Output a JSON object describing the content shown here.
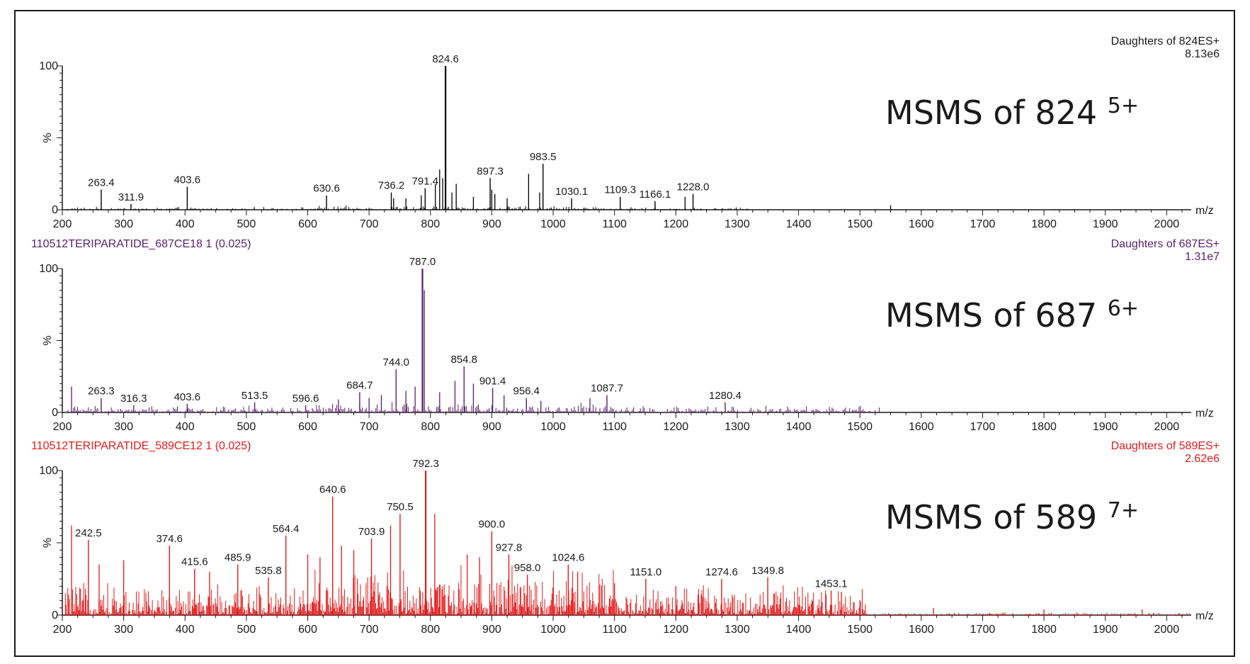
{
  "chart_data": [
    {
      "type": "bar",
      "title": "MSMS of 824",
      "title_superscript": "5+",
      "header_left": "",
      "header_right": "Daughters of 824ES+",
      "intensity": "8.13e6",
      "xlabel": "m/z",
      "ylabel": "%",
      "xlim": [
        200,
        2040
      ],
      "ylim": [
        0,
        100
      ],
      "y_ticks": [
        0,
        100
      ],
      "x_ticks": [
        200,
        300,
        400,
        500,
        600,
        700,
        800,
        900,
        1000,
        1100,
        1200,
        1300,
        1400,
        1500,
        1600,
        1700,
        1800,
        1900,
        2000
      ],
      "color": "#000000",
      "noise_level": 2,
      "noise_max_mz": 1320,
      "labeled_peaks": [
        {
          "mz": 263.4,
          "value": 14,
          "label": "263.4"
        },
        {
          "mz": 311.9,
          "value": 4,
          "label": "311.9"
        },
        {
          "mz": 403.6,
          "value": 16,
          "label": "403.6"
        },
        {
          "mz": 630.6,
          "value": 10,
          "label": "630.6"
        },
        {
          "mz": 736.2,
          "value": 12,
          "label": "736.2"
        },
        {
          "mz": 791.4,
          "value": 15,
          "label": "791.4"
        },
        {
          "mz": 824.6,
          "value": 100,
          "label": "824.6"
        },
        {
          "mz": 897.3,
          "value": 22,
          "label": "897.3"
        },
        {
          "mz": 983.5,
          "value": 32,
          "label": "983.5"
        },
        {
          "mz": 1030.1,
          "value": 8,
          "label": "1030.1"
        },
        {
          "mz": 1109.3,
          "value": 9,
          "label": "1109.3"
        },
        {
          "mz": 1166.1,
          "value": 6,
          "label": "1166.1"
        },
        {
          "mz": 1228.0,
          "value": 11,
          "label": "1228.0"
        }
      ],
      "other_peaks": [
        {
          "mz": 815,
          "value": 28
        },
        {
          "mz": 820,
          "value": 22
        },
        {
          "mz": 808,
          "value": 18
        },
        {
          "mz": 842,
          "value": 18
        },
        {
          "mz": 835,
          "value": 12
        },
        {
          "mz": 960,
          "value": 25
        },
        {
          "mz": 900,
          "value": 14
        },
        {
          "mz": 905,
          "value": 11
        },
        {
          "mz": 978,
          "value": 12
        },
        {
          "mz": 785,
          "value": 10
        },
        {
          "mz": 760,
          "value": 8
        },
        {
          "mz": 1215,
          "value": 9
        },
        {
          "mz": 740,
          "value": 8
        },
        {
          "mz": 870,
          "value": 9
        },
        {
          "mz": 925,
          "value": 8
        },
        {
          "mz": 1550,
          "value": 3
        }
      ]
    },
    {
      "type": "bar",
      "title": "MSMS of 687",
      "title_superscript": "6+",
      "header_left": "110512TERIPARATIDE_687CE18 1 (0.025)",
      "header_right": "Daughters of 687ES+",
      "intensity": "1.31e7",
      "xlabel": "m/z",
      "ylabel": "%",
      "xlim": [
        200,
        2040
      ],
      "ylim": [
        0,
        100
      ],
      "y_ticks": [
        0,
        100
      ],
      "x_ticks": [
        200,
        300,
        400,
        500,
        600,
        700,
        800,
        900,
        1000,
        1100,
        1200,
        1300,
        1400,
        1500,
        1600,
        1700,
        1800,
        1900,
        2000
      ],
      "color": "#5b1f6e",
      "noise_level": 5,
      "noise_max_mz": 1550,
      "labeled_peaks": [
        {
          "mz": 263.3,
          "value": 10,
          "label": "263.3"
        },
        {
          "mz": 316.3,
          "value": 5,
          "label": "316.3"
        },
        {
          "mz": 403.6,
          "value": 6,
          "label": "403.6"
        },
        {
          "mz": 513.5,
          "value": 7,
          "label": "513.5"
        },
        {
          "mz": 596.6,
          "value": 5,
          "label": "596.6"
        },
        {
          "mz": 684.7,
          "value": 14,
          "label": "684.7"
        },
        {
          "mz": 744.0,
          "value": 30,
          "label": "744.0"
        },
        {
          "mz": 787.0,
          "value": 100,
          "label": "787.0"
        },
        {
          "mz": 854.8,
          "value": 32,
          "label": "854.8"
        },
        {
          "mz": 901.4,
          "value": 17,
          "label": "901.4"
        },
        {
          "mz": 956.4,
          "value": 10,
          "label": "956.4"
        },
        {
          "mz": 1087.7,
          "value": 12,
          "label": "1087.7"
        },
        {
          "mz": 1280.4,
          "value": 7,
          "label": "1280.4"
        }
      ],
      "other_peaks": [
        {
          "mz": 215,
          "value": 18
        },
        {
          "mz": 790,
          "value": 85
        },
        {
          "mz": 840,
          "value": 22
        },
        {
          "mz": 870,
          "value": 20
        },
        {
          "mz": 775,
          "value": 18
        },
        {
          "mz": 760,
          "value": 15
        },
        {
          "mz": 815,
          "value": 14
        },
        {
          "mz": 720,
          "value": 12
        },
        {
          "mz": 700,
          "value": 10
        },
        {
          "mz": 1060,
          "value": 10
        },
        {
          "mz": 920,
          "value": 12
        },
        {
          "mz": 980,
          "value": 8
        },
        {
          "mz": 650,
          "value": 9
        }
      ]
    },
    {
      "type": "bar",
      "title": "MSMS of 589",
      "title_superscript": "7+",
      "header_left": "110512TERIPARATIDE_589CE12 1 (0.025)",
      "header_right": "Daughters of 589ES+",
      "intensity": "2.62e6",
      "xlabel": "m/z",
      "ylabel": "%",
      "xlim": [
        200,
        2040
      ],
      "ylim": [
        0,
        100
      ],
      "y_ticks": [
        0,
        100
      ],
      "x_ticks": [
        200,
        300,
        400,
        500,
        600,
        700,
        800,
        900,
        1000,
        1100,
        1200,
        1300,
        1400,
        1500,
        1600,
        1700,
        1800,
        1900,
        2000
      ],
      "color": "#e41b1b",
      "noise_level": 24,
      "noise_max_mz": 1510,
      "labeled_peaks": [
        {
          "mz": 242.5,
          "value": 52,
          "label": "242.5"
        },
        {
          "mz": 374.6,
          "value": 48,
          "label": "374.6"
        },
        {
          "mz": 415.6,
          "value": 32,
          "label": "415.6"
        },
        {
          "mz": 485.9,
          "value": 35,
          "label": "485.9"
        },
        {
          "mz": 535.8,
          "value": 26,
          "label": "535.8"
        },
        {
          "mz": 564.4,
          "value": 55,
          "label": "564.4"
        },
        {
          "mz": 640.6,
          "value": 82,
          "label": "640.6"
        },
        {
          "mz": 703.9,
          "value": 53,
          "label": "703.9"
        },
        {
          "mz": 750.5,
          "value": 70,
          "label": "750.5"
        },
        {
          "mz": 792.3,
          "value": 100,
          "label": "792.3"
        },
        {
          "mz": 900.0,
          "value": 58,
          "label": "900.0"
        },
        {
          "mz": 927.8,
          "value": 42,
          "label": "927.8"
        },
        {
          "mz": 958.0,
          "value": 28,
          "label": "958.0"
        },
        {
          "mz": 1024.6,
          "value": 35,
          "label": "1024.6"
        },
        {
          "mz": 1151.0,
          "value": 25,
          "label": "1151.0"
        },
        {
          "mz": 1274.6,
          "value": 25,
          "label": "1274.6"
        },
        {
          "mz": 1349.8,
          "value": 26,
          "label": "1349.8"
        },
        {
          "mz": 1453.1,
          "value": 17,
          "label": "1453.1"
        }
      ],
      "other_peaks": [
        {
          "mz": 215,
          "value": 62
        },
        {
          "mz": 807,
          "value": 70
        },
        {
          "mz": 735,
          "value": 62
        },
        {
          "mz": 655,
          "value": 48
        },
        {
          "mz": 675,
          "value": 45
        },
        {
          "mz": 600,
          "value": 42
        },
        {
          "mz": 620,
          "value": 40
        },
        {
          "mz": 860,
          "value": 42
        },
        {
          "mz": 880,
          "value": 40
        },
        {
          "mz": 300,
          "value": 38
        },
        {
          "mz": 260,
          "value": 35
        },
        {
          "mz": 440,
          "value": 30
        },
        {
          "mz": 1040,
          "value": 30
        },
        {
          "mz": 1100,
          "value": 22
        },
        {
          "mz": 1200,
          "value": 20
        },
        {
          "mz": 1470,
          "value": 16
        },
        {
          "mz": 1620,
          "value": 5
        },
        {
          "mz": 1800,
          "value": 4
        },
        {
          "mz": 1960,
          "value": 4
        }
      ]
    }
  ]
}
